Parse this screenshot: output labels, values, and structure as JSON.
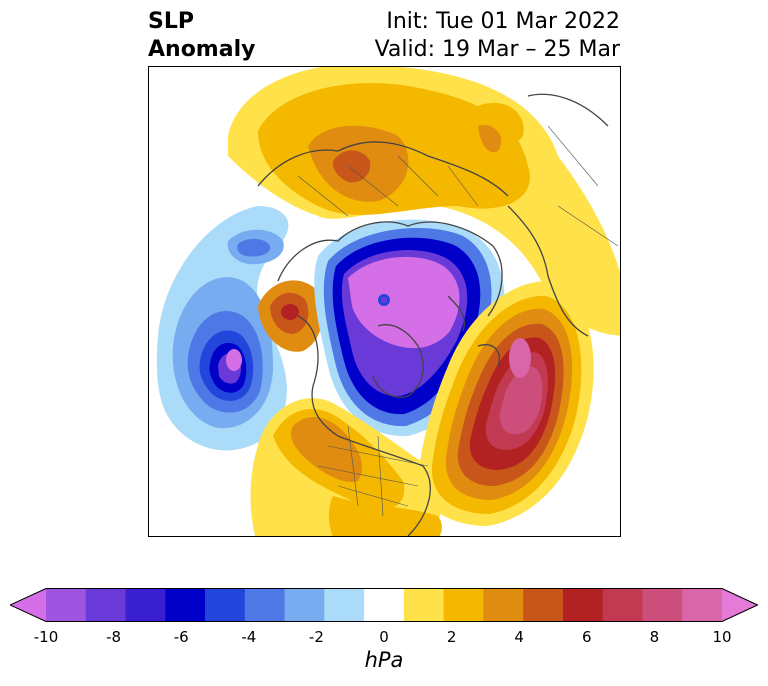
{
  "title": {
    "left_line1": "SLP",
    "left_line2": "Anomaly",
    "right_line1": "Init: Tue 01 Mar 2022",
    "right_line2": "Valid: 19 Mar – 25 Mar"
  },
  "colorbar": {
    "unit": "hPa",
    "levels": [
      -10,
      -9,
      -8,
      -7,
      -6,
      -5,
      -4,
      -3,
      -2,
      -1,
      1,
      2,
      3,
      4,
      5,
      6,
      7,
      8,
      9,
      10
    ],
    "tick_values": [
      -10,
      -8,
      -6,
      -4,
      -2,
      0,
      2,
      4,
      6,
      8,
      10
    ],
    "tick_labels": [
      "-10",
      "-8",
      "-6",
      "-4",
      "-2",
      "0",
      "2",
      "4",
      "6",
      "8",
      "10"
    ],
    "colors": [
      "#d46fe8",
      "#a055e0",
      "#6a3ad8",
      "#3a1fd0",
      "#0000c8",
      "#2246dc",
      "#4d78e6",
      "#78acf0",
      "#aadcfa",
      "#ffffff",
      "#ffe14a",
      "#f5b800",
      "#e08c10",
      "#c8561a",
      "#b22222",
      "#c23a52",
      "#cc4e7a",
      "#d966a8",
      "#e57ad8"
    ],
    "extend": "both"
  },
  "map": {
    "projection": "north-polar-stereographic",
    "field": "sea level pressure anomaly",
    "anomalies": [
      {
        "name": "arctic-low",
        "center_hPa": -10
      },
      {
        "name": "pacific-low",
        "center_hPa": -10
      },
      {
        "name": "atlantic-high",
        "center_hPa": 9
      },
      {
        "name": "eurasia-high",
        "center_hPa": 6
      },
      {
        "name": "alaska-high",
        "center_hPa": 6
      },
      {
        "name": "north-america-high",
        "center_hPa": 4
      }
    ]
  }
}
